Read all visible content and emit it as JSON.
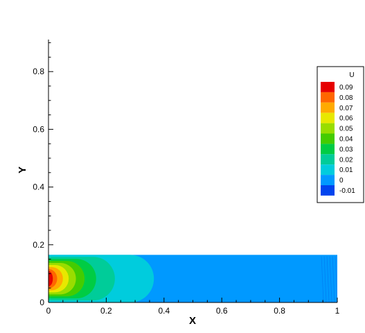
{
  "chart_data": {
    "type": "heatmap",
    "xlabel": "X",
    "ylabel": "Y",
    "xlim": [
      0,
      1
    ],
    "ylim": [
      0,
      0.9
    ],
    "xticks": [
      "0",
      "0.2",
      "0.4",
      "0.6",
      "0.8",
      "1"
    ],
    "yticks": [
      "0",
      "0.2",
      "0.4",
      "0.6",
      "0.8"
    ],
    "domain_height": 0.165,
    "field_variable": "U",
    "legend": {
      "title": "U",
      "placement": "right",
      "levels": [
        {
          "label": "0.09",
          "color": "#e60000"
        },
        {
          "label": "0.08",
          "color": "#ff6600"
        },
        {
          "label": "0.07",
          "color": "#ffaa00"
        },
        {
          "label": "0.06",
          "color": "#e8e800"
        },
        {
          "label": "0.05",
          "color": "#99dd00"
        },
        {
          "label": "0.04",
          "color": "#44cc00"
        },
        {
          "label": "0.03",
          "color": "#00cc44"
        },
        {
          "label": "0.02",
          "color": "#00cc99"
        },
        {
          "label": "0.01",
          "color": "#00ccdd"
        },
        {
          "label": "0",
          "color": "#0099ff"
        },
        {
          "label": "-0.01",
          "color": "#0044ee"
        }
      ]
    },
    "contours": [
      {
        "level": "0",
        "color": "#0099ff",
        "extent_x": 1.0
      },
      {
        "level": "0.01",
        "color": "#00ccdd",
        "extent_x": 0.365
      },
      {
        "level": "0.02",
        "color": "#00cc99",
        "extent_x": 0.23
      },
      {
        "level": "0.03",
        "color": "#00cc44",
        "extent_x": 0.165
      },
      {
        "level": "0.04",
        "color": "#44cc00",
        "extent_x": 0.125
      },
      {
        "level": "0.05",
        "color": "#99dd00",
        "extent_x": 0.095
      },
      {
        "level": "0.06",
        "color": "#e8e800",
        "extent_x": 0.07
      },
      {
        "level": "0.07",
        "color": "#ffaa00",
        "extent_x": 0.05
      },
      {
        "level": "0.08",
        "color": "#ff6600",
        "extent_x": 0.03
      },
      {
        "level": "0.09",
        "color": "#e60000",
        "extent_x": 0.015
      }
    ]
  }
}
